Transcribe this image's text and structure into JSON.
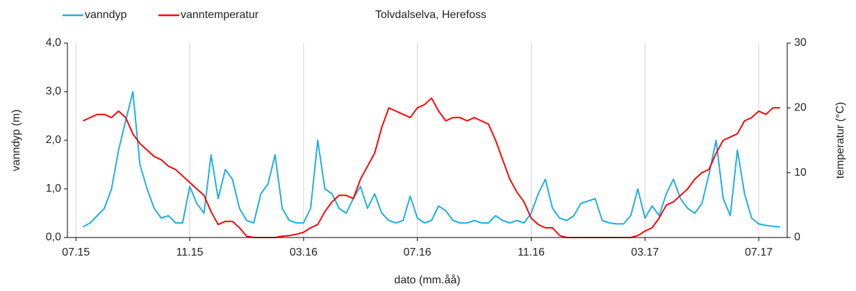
{
  "chart_data": {
    "type": "line",
    "title": "Tolvdalselva, Herefoss",
    "xlabel": "dato (mm.åå)",
    "ylabel": "vanndyp (m)",
    "y2label": "temperatur (°C)",
    "x": [
      0.25,
      0.5,
      0.75,
      1.0,
      1.25,
      1.5,
      1.75,
      2.0,
      2.25,
      2.5,
      2.75,
      3.0,
      3.25,
      3.5,
      3.75,
      4.0,
      4.25,
      4.5,
      4.75,
      5.0,
      5.25,
      5.5,
      5.75,
      6.0,
      6.25,
      6.5,
      6.75,
      7.0,
      7.25,
      7.5,
      7.75,
      8.0,
      8.25,
      8.5,
      8.75,
      9.0,
      9.25,
      9.5,
      9.75,
      10.0,
      10.25,
      10.5,
      10.75,
      11.0,
      11.25,
      11.5,
      11.75,
      12.0,
      12.25,
      12.5,
      12.75,
      13.0,
      13.25,
      13.5,
      13.75,
      14.0,
      14.25,
      14.5,
      14.75,
      15.0,
      15.25,
      15.5,
      15.75,
      16.0,
      16.25,
      16.5,
      16.75,
      17.0,
      17.25,
      17.5,
      17.75,
      18.0,
      18.25,
      18.5,
      18.75,
      19.0,
      19.25,
      19.5,
      19.75,
      20.0,
      20.25,
      20.5,
      20.75,
      21.0,
      21.25,
      21.5,
      21.75,
      22.0,
      22.25,
      22.5,
      22.75,
      23.0,
      23.25,
      23.5,
      23.75,
      24.0,
      24.25,
      24.5,
      24.75
    ],
    "series": [
      {
        "name": "vanndyp",
        "color": "#1aaee3",
        "values": [
          0.22,
          0.3,
          0.45,
          0.6,
          1.0,
          1.8,
          2.4,
          3.0,
          1.5,
          1.0,
          0.6,
          0.4,
          0.45,
          0.3,
          0.3,
          1.05,
          0.7,
          0.5,
          1.7,
          0.8,
          1.4,
          1.2,
          0.6,
          0.35,
          0.3,
          0.9,
          1.1,
          1.7,
          0.6,
          0.35,
          0.3,
          0.3,
          0.6,
          2.0,
          1.0,
          0.9,
          0.6,
          0.5,
          0.8,
          1.05,
          0.6,
          0.9,
          0.5,
          0.35,
          0.3,
          0.35,
          0.85,
          0.4,
          0.3,
          0.35,
          0.65,
          0.55,
          0.35,
          0.3,
          0.3,
          0.35,
          0.3,
          0.3,
          0.45,
          0.35,
          0.3,
          0.35,
          0.3,
          0.5,
          0.9,
          1.2,
          0.6,
          0.4,
          0.35,
          0.45,
          0.7,
          0.75,
          0.8,
          0.35,
          0.3,
          0.28,
          0.28,
          0.45,
          1.0,
          0.4,
          0.65,
          0.45,
          0.9,
          1.2,
          0.8,
          0.6,
          0.5,
          0.7,
          1.3,
          2.0,
          0.8,
          0.45,
          1.8,
          0.9,
          0.4,
          0.28,
          0.25,
          0.23,
          0.22
        ]
      },
      {
        "name": "vanntemperatur",
        "color": "#ff0000",
        "axis": "y2",
        "values": [
          18,
          18.5,
          19,
          19,
          18.5,
          19.5,
          18.5,
          16,
          14.5,
          13.5,
          12.5,
          12,
          11,
          10.5,
          9.5,
          8.5,
          7.5,
          6.5,
          4,
          2,
          2.5,
          2.5,
          1.5,
          0.2,
          0,
          0,
          0,
          0,
          0.2,
          0.3,
          0.5,
          0.8,
          1.5,
          2,
          4,
          5.5,
          6.5,
          6.5,
          6,
          9,
          11,
          13,
          17,
          20,
          19.5,
          19,
          18.5,
          20,
          20.5,
          21.5,
          19.5,
          18,
          18.5,
          18.5,
          18,
          18.5,
          18,
          17.5,
          15,
          12,
          9,
          7,
          5.5,
          3,
          2,
          1.5,
          1.5,
          0.3,
          0,
          0,
          0,
          0,
          0,
          0,
          0,
          0,
          0,
          0,
          0.3,
          1,
          1.5,
          3,
          5,
          5.5,
          6.5,
          7.5,
          9,
          10,
          10.5,
          13,
          15,
          15.5,
          16,
          18,
          18.5,
          19.5,
          19,
          20,
          20
        ]
      }
    ],
    "xlim": [
      -0.3,
      25.0
    ],
    "xticks": [
      {
        "value": 0,
        "label": "07.15"
      },
      {
        "value": 4,
        "label": "11.15"
      },
      {
        "value": 8,
        "label": "03.16"
      },
      {
        "value": 12,
        "label": "07.16"
      },
      {
        "value": 16,
        "label": "11.16"
      },
      {
        "value": 20,
        "label": "03.17"
      },
      {
        "value": 24,
        "label": "07.17"
      }
    ],
    "ylim": [
      0,
      4
    ],
    "yticks": [
      {
        "value": 0,
        "label": "0,0"
      },
      {
        "value": 1,
        "label": "1,0"
      },
      {
        "value": 2,
        "label": "2,0"
      },
      {
        "value": 3,
        "label": "3,0"
      },
      {
        "value": 4,
        "label": "4,0"
      }
    ],
    "y2lim": [
      0,
      30
    ],
    "y2ticks": [
      0,
      10,
      20,
      30
    ],
    "grid": true
  }
}
